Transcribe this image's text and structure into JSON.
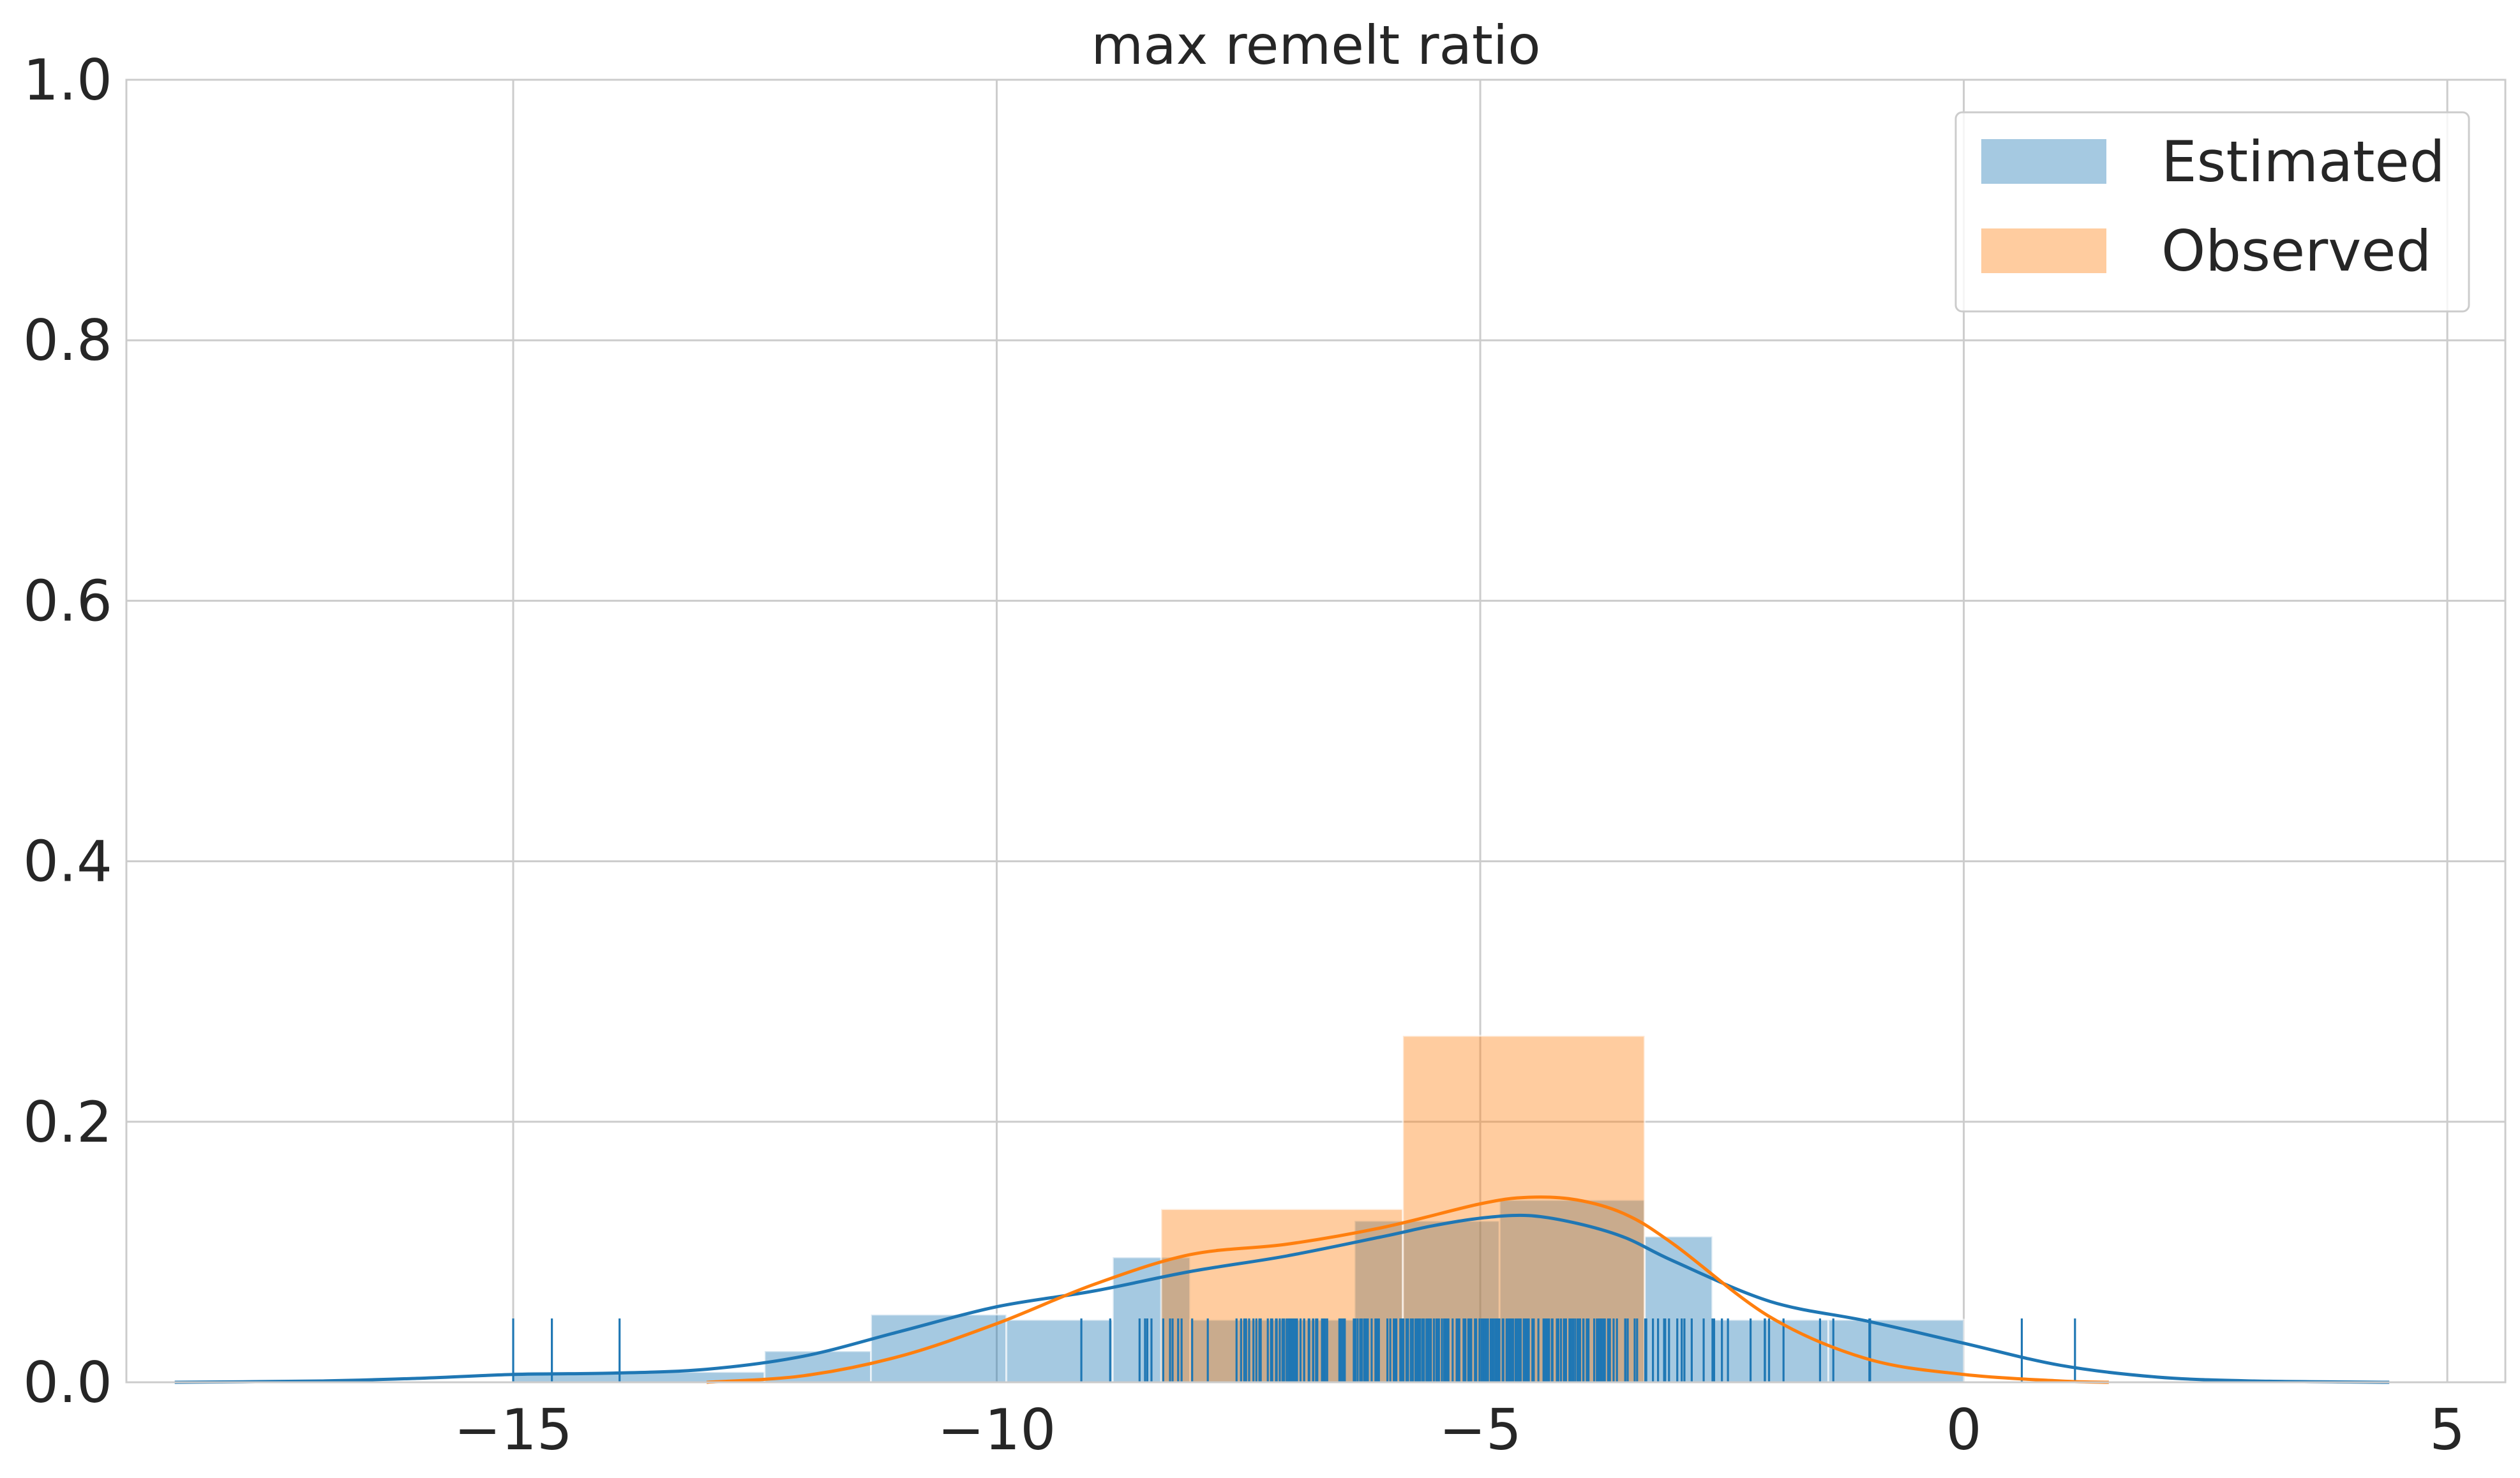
{
  "chart_data": {
    "type": "histogram",
    "title": "max remelt ratio",
    "xlabel": "",
    "ylabel": "",
    "xlim": [
      -19.0,
      5.6
    ],
    "ylim": [
      0.0,
      1.0
    ],
    "x_ticks": [
      -15,
      -10,
      -5,
      0,
      5
    ],
    "x_tick_labels": [
      "−15",
      "−10",
      "−5",
      "0",
      "5"
    ],
    "y_ticks": [
      0.0,
      0.2,
      0.4,
      0.6,
      0.8,
      1.0
    ],
    "y_tick_labels": [
      "0.0",
      "0.2",
      "0.4",
      "0.6",
      "0.8",
      "1.0"
    ],
    "grid": true,
    "legend_position": "top-right",
    "series": [
      {
        "name": "Estimated",
        "color": "#1f77b4",
        "hist_bins": [
          {
            "x0": -15.0,
            "x1": -12.4,
            "density": 0.008
          },
          {
            "x0": -12.4,
            "x1": -11.3,
            "density": 0.024
          },
          {
            "x0": -11.3,
            "x1": -9.9,
            "density": 0.052
          },
          {
            "x0": -9.9,
            "x1": -8.8,
            "density": 0.048
          },
          {
            "x0": -8.8,
            "x1": -8.0,
            "density": 0.096
          },
          {
            "x0": -8.0,
            "x1": -6.3,
            "density": 0.048
          },
          {
            "x0": -6.3,
            "x1": -4.8,
            "density": 0.124
          },
          {
            "x0": -4.8,
            "x1": -3.3,
            "density": 0.14
          },
          {
            "x0": -3.3,
            "x1": -2.6,
            "density": 0.112
          },
          {
            "x0": -2.6,
            "x1": -1.4,
            "density": 0.048
          },
          {
            "x0": -1.4,
            "x1": 0.0,
            "density": 0.048
          }
        ],
        "kde": {
          "x": [
            -18.5,
            -17.0,
            -16.0,
            -15.0,
            -14.0,
            -13.0,
            -12.0,
            -11.0,
            -10.0,
            -9.0,
            -8.0,
            -7.0,
            -6.0,
            -5.5,
            -5.0,
            -4.5,
            -4.0,
            -3.5,
            -3.0,
            -2.0,
            -1.0,
            0.0,
            1.0,
            2.0,
            3.0,
            4.4
          ],
          "y": [
            0.0,
            0.001,
            0.003,
            0.006,
            0.007,
            0.01,
            0.02,
            0.039,
            0.058,
            0.07,
            0.085,
            0.097,
            0.112,
            0.12,
            0.126,
            0.128,
            0.122,
            0.111,
            0.093,
            0.062,
            0.047,
            0.03,
            0.013,
            0.004,
            0.001,
            0.0
          ]
        },
        "rug_count": 260
      },
      {
        "name": "Observed",
        "color": "#ff7f0e",
        "hist_bins": [
          {
            "x0": -8.3,
            "x1": -5.8,
            "density": 0.133
          },
          {
            "x0": -5.8,
            "x1": -3.3,
            "density": 0.266
          }
        ],
        "kde": {
          "x": [
            -13.0,
            -12.0,
            -11.0,
            -10.0,
            -9.0,
            -8.0,
            -7.0,
            -6.0,
            -5.0,
            -4.5,
            -4.0,
            -3.5,
            -3.0,
            -2.0,
            -1.0,
            0.0,
            1.0,
            1.5
          ],
          "y": [
            0.0,
            0.005,
            0.02,
            0.045,
            0.075,
            0.098,
            0.106,
            0.119,
            0.137,
            0.142,
            0.14,
            0.129,
            0.106,
            0.05,
            0.018,
            0.006,
            0.001,
            0.0
          ]
        }
      }
    ]
  }
}
